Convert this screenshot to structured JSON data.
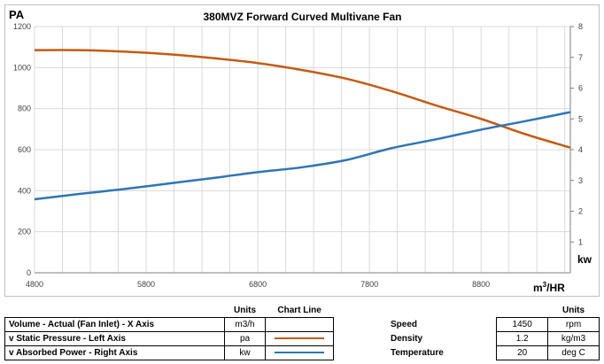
{
  "chart_data": {
    "type": "line",
    "title": "380MVZ Forward Curved Multivane Fan",
    "left_axis_label": "PA",
    "right_axis_label": "kw",
    "x_axis_label_base": "m",
    "x_axis_label_sup": "3",
    "x_axis_label_tail": "/HR",
    "xlim": [
      4800,
      9600
    ],
    "x_ticks": [
      4800,
      5800,
      6800,
      7800,
      8800
    ],
    "x_grid_step": 250,
    "ylim_left": [
      0,
      1200
    ],
    "y_ticks_left": [
      0,
      200,
      400,
      600,
      800,
      1000,
      1200
    ],
    "ylim_right": [
      0,
      8
    ],
    "y_ticks_right": [
      1,
      2,
      3,
      4,
      5,
      6,
      7,
      8
    ],
    "grid": true,
    "series": [
      {
        "axis": "left",
        "color": "#c55a11",
        "x": [
          4800,
          5200,
          5600,
          6000,
          6400,
          6800,
          7200,
          7600,
          8000,
          8400,
          8800,
          9200,
          9600
        ],
        "y": [
          1085,
          1085,
          1078,
          1065,
          1046,
          1022,
          988,
          945,
          885,
          815,
          750,
          675,
          610
        ]
      },
      {
        "axis": "right",
        "color": "#2e75b6",
        "x": [
          4800,
          5200,
          5600,
          6000,
          6400,
          6800,
          7200,
          7600,
          8000,
          8400,
          8800,
          9200,
          9600
        ],
        "y": [
          2.39,
          2.56,
          2.72,
          2.9,
          3.08,
          3.27,
          3.43,
          3.67,
          4.05,
          4.34,
          4.65,
          4.93,
          5.22
        ]
      }
    ]
  },
  "legend_table": {
    "headers": {
      "units": "Units",
      "chart_line": "Chart Line"
    },
    "rows": [
      {
        "label": "Volume - Actual (Fan Inlet) - X Axis",
        "units": "m3/h",
        "line_color": ""
      },
      {
        "label": "v Static Pressure - Left Axis",
        "units": "pa",
        "line_color": "#c55a11"
      },
      {
        "label": "v Absorbed Power - Right Axis",
        "units": "kw",
        "line_color": "#2e75b6"
      }
    ]
  },
  "conditions_table": {
    "header_units": "Units",
    "rows": [
      {
        "label": "Speed",
        "value": "1450",
        "units": "rpm"
      },
      {
        "label": "Density",
        "value": "1.2",
        "units": "kg/m3"
      },
      {
        "label": "Temperature",
        "value": "20",
        "units": "deg C"
      }
    ]
  }
}
